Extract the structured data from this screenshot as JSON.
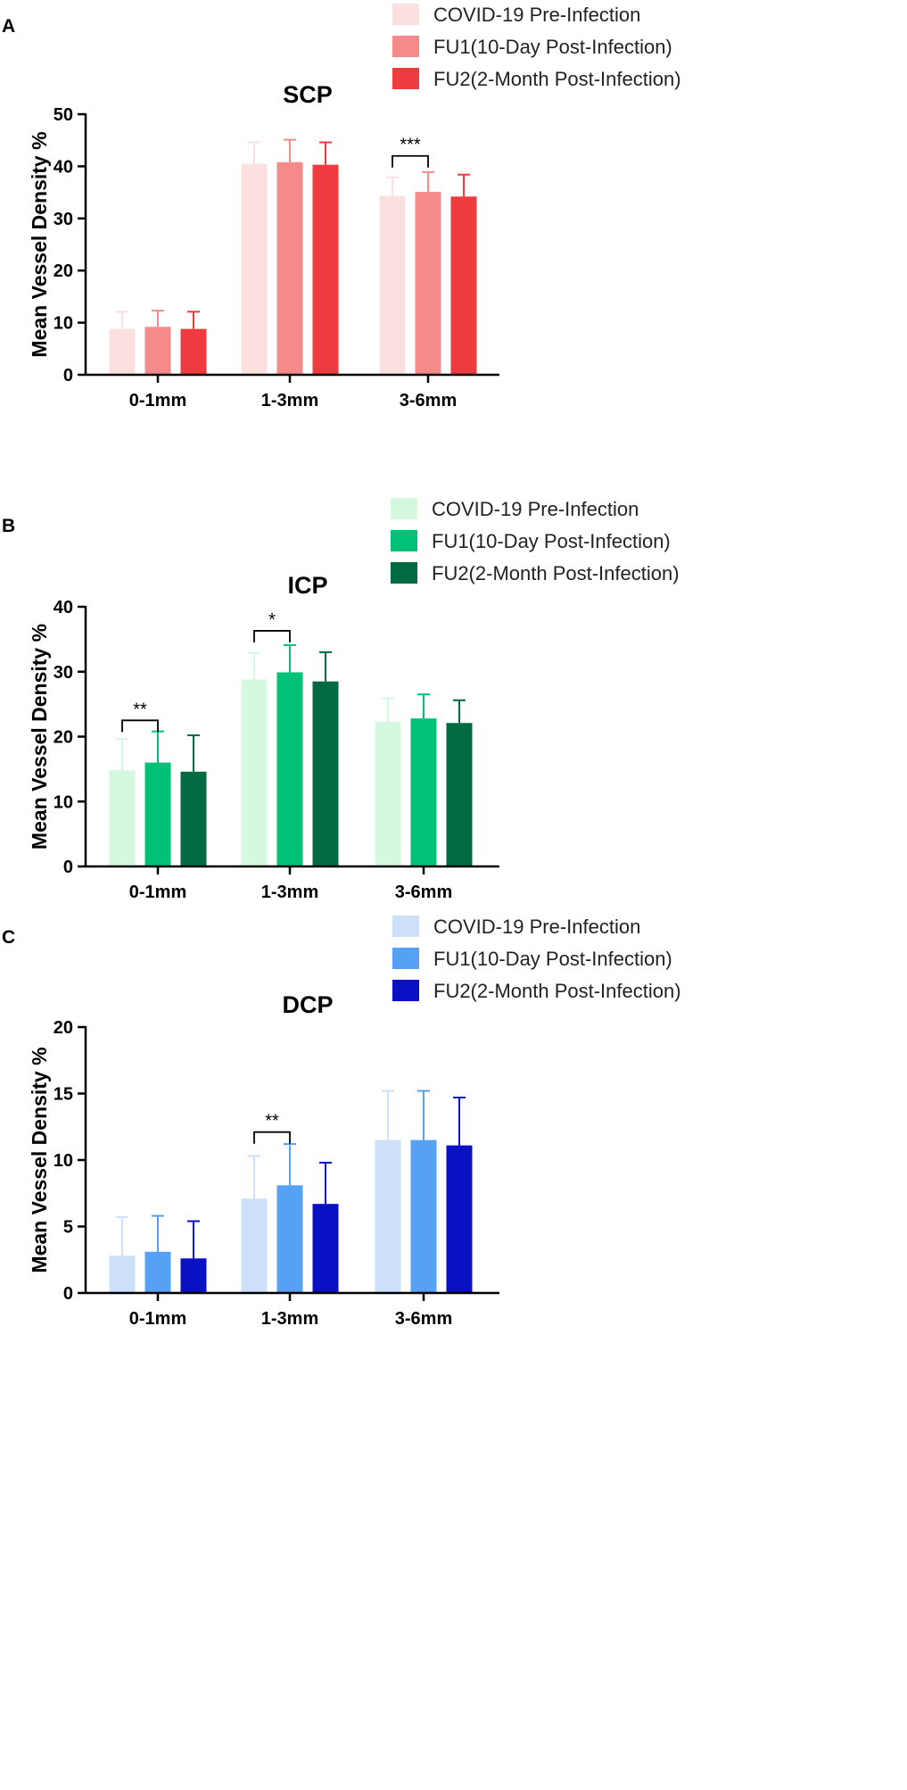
{
  "chart_data": [
    {
      "panel": "A",
      "type": "bar",
      "title": "SCP",
      "ylabel": "Mean Vessel Density %",
      "xlabel": "",
      "ylim": [
        0,
        50
      ],
      "yticks": [
        0,
        10,
        20,
        30,
        40,
        50
      ],
      "categories": [
        "0-1mm",
        "1-3mm",
        "3-6mm"
      ],
      "colors": [
        "#fce0e0",
        "#f58a8a",
        "#ee3b40"
      ],
      "series": [
        {
          "name": "COVID-19 Pre-Infection",
          "values": [
            8.8,
            40.5,
            34.3
          ],
          "errors": [
            3.3,
            4.1,
            3.6
          ]
        },
        {
          "name": "FU1(10-Day Post-Infection)",
          "values": [
            9.2,
            40.8,
            35.1
          ],
          "errors": [
            3.1,
            4.3,
            3.8
          ]
        },
        {
          "name": "FU2(2-Month Post-Infection)",
          "values": [
            8.8,
            40.3,
            34.2
          ],
          "errors": [
            3.3,
            4.3,
            4.2
          ]
        }
      ],
      "significance": [
        {
          "category": "3-6mm",
          "from_series": 0,
          "to_series": 1,
          "label": "***",
          "level": 42
        }
      ]
    },
    {
      "panel": "B",
      "type": "bar",
      "title": "ICP",
      "ylabel": "Mean Vessel Density %",
      "xlabel": "",
      "ylim": [
        0,
        40
      ],
      "yticks": [
        0,
        10,
        20,
        30,
        40
      ],
      "categories": [
        "0-1mm",
        "1-3mm",
        "3-6mm"
      ],
      "colors": [
        "#d5f8de",
        "#00c176",
        "#006b43"
      ],
      "series": [
        {
          "name": "COVID-19 Pre-Infection",
          "values": [
            14.8,
            28.8,
            22.3
          ],
          "errors": [
            4.8,
            4.1,
            3.6
          ]
        },
        {
          "name": "FU1(10-Day Post-Infection)",
          "values": [
            16.0,
            29.9,
            22.8
          ],
          "errors": [
            4.8,
            4.2,
            3.7
          ]
        },
        {
          "name": "FU2(2-Month Post-Infection)",
          "values": [
            14.6,
            28.5,
            22.1
          ],
          "errors": [
            5.6,
            4.5,
            3.5
          ]
        }
      ],
      "significance": [
        {
          "category": "0-1mm",
          "from_series": 0,
          "to_series": 1,
          "label": "**",
          "level": 22.5
        },
        {
          "category": "1-3mm",
          "from_series": 0,
          "to_series": 1,
          "label": "*",
          "level": 36.3
        }
      ]
    },
    {
      "panel": "C",
      "type": "bar",
      "title": "DCP",
      "ylabel": "Mean Vessel Density %",
      "xlabel": "",
      "ylim": [
        0,
        20
      ],
      "yticks": [
        0,
        5,
        10,
        15,
        20
      ],
      "categories": [
        "0-1mm",
        "1-3mm",
        "3-6mm"
      ],
      "colors": [
        "#cde0fa",
        "#56a1f5",
        "#0a10c4"
      ],
      "series": [
        {
          "name": "COVID-19 Pre-Infection",
          "values": [
            2.8,
            7.1,
            11.5
          ],
          "errors": [
            2.9,
            3.2,
            3.7
          ]
        },
        {
          "name": "FU1(10-Day Post-Infection)",
          "values": [
            3.1,
            8.1,
            11.5
          ],
          "errors": [
            2.7,
            3.1,
            3.7
          ]
        },
        {
          "name": "FU2(2-Month Post-Infection)",
          "values": [
            2.6,
            6.7,
            11.1
          ],
          "errors": [
            2.8,
            3.1,
            3.6
          ]
        }
      ],
      "significance": [
        {
          "category": "1-3mm",
          "from_series": 0,
          "to_series": 1,
          "label": "**",
          "level": 12.1
        }
      ]
    }
  ]
}
